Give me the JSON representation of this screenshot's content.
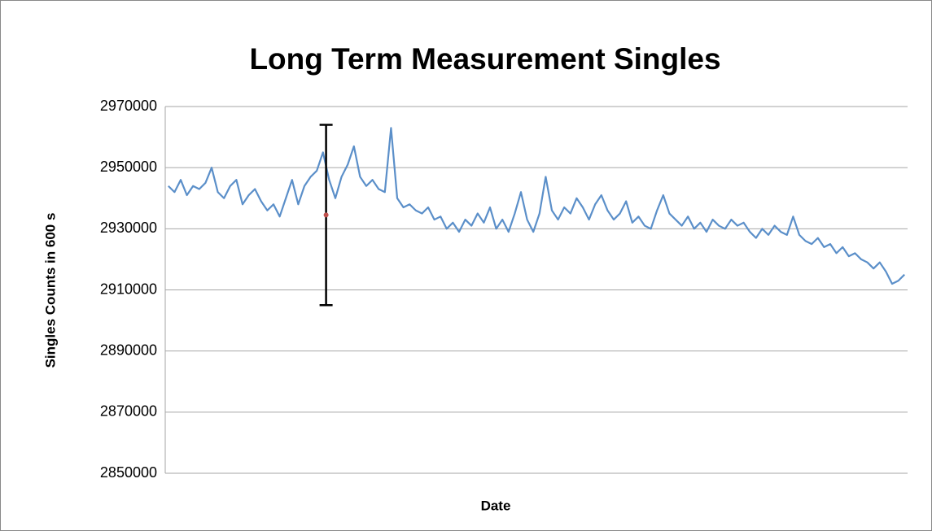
{
  "chart_data": {
    "type": "line",
    "title": "Long Term Measurement Singles",
    "xlabel": "Date",
    "ylabel": "Singles Counts in 600 s",
    "categories": [
      null,
      null,
      null,
      null,
      null,
      null,
      null,
      null,
      null,
      null,
      null,
      null,
      null,
      null,
      null,
      null,
      null,
      null,
      null,
      null,
      null,
      null,
      null,
      null,
      null,
      null,
      null,
      null,
      null,
      null,
      null,
      null,
      null,
      null,
      null,
      null,
      null,
      null,
      null,
      null,
      null,
      null,
      null,
      null,
      null,
      null,
      null,
      null,
      null,
      null,
      null,
      null,
      null,
      null,
      null,
      null,
      null,
      null,
      null,
      null,
      null,
      null,
      null,
      null,
      null,
      null,
      null,
      null,
      null,
      null,
      null,
      null,
      null,
      null,
      null,
      null,
      null,
      null,
      null,
      null,
      null,
      null,
      null,
      null,
      null,
      null,
      null,
      null,
      null,
      null,
      null,
      null,
      null,
      null,
      null,
      null,
      null,
      null,
      null,
      null,
      null,
      null,
      null,
      null,
      null,
      null,
      null,
      null,
      null,
      null,
      null,
      null,
      null,
      null,
      null,
      null,
      null,
      null,
      null,
      null
    ],
    "values": [
      2944000,
      2942000,
      2946000,
      2941000,
      2944000,
      2943000,
      2945000,
      2950000,
      2942000,
      2940000,
      2944000,
      2946000,
      2938000,
      2941000,
      2943000,
      2939000,
      2936000,
      2938000,
      2934000,
      2940000,
      2946000,
      2938000,
      2944000,
      2947000,
      2949000,
      2955000,
      2946000,
      2940000,
      2947000,
      2951000,
      2957000,
      2947000,
      2944000,
      2946000,
      2943000,
      2942000,
      2963000,
      2940000,
      2937000,
      2938000,
      2936000,
      2935000,
      2937000,
      2933000,
      2934000,
      2930000,
      2932000,
      2929000,
      2933000,
      2931000,
      2935000,
      2932000,
      2937000,
      2930000,
      2933000,
      2929000,
      2935000,
      2942000,
      2933000,
      2929000,
      2935000,
      2947000,
      2936000,
      2933000,
      2937000,
      2935000,
      2940000,
      2937000,
      2933000,
      2938000,
      2941000,
      2936000,
      2933000,
      2935000,
      2939000,
      2932000,
      2934000,
      2931000,
      2930000,
      2936000,
      2941000,
      2935000,
      2933000,
      2931000,
      2934000,
      2930000,
      2932000,
      2929000,
      2933000,
      2931000,
      2930000,
      2933000,
      2931000,
      2932000,
      2929000,
      2927000,
      2930000,
      2928000,
      2931000,
      2929000,
      2928000,
      2934000,
      2928000,
      2926000,
      2925000,
      2927000,
      2924000,
      2925000,
      2922000,
      2924000,
      2921000,
      2922000,
      2920000,
      2919000,
      2917000,
      2919000,
      2916000,
      2912000,
      2913000,
      2915000
    ],
    "color": "#5b8fc9",
    "error_bar": {
      "category_index": 26,
      "value": 2934500,
      "error": 29500,
      "color": "#000000",
      "marker_color": "#c0504d"
    },
    "ylim": [
      2850000,
      2970000
    ],
    "yticks": [
      2850000,
      2870000,
      2890000,
      2910000,
      2930000,
      2950000,
      2970000
    ],
    "grid": true
  }
}
